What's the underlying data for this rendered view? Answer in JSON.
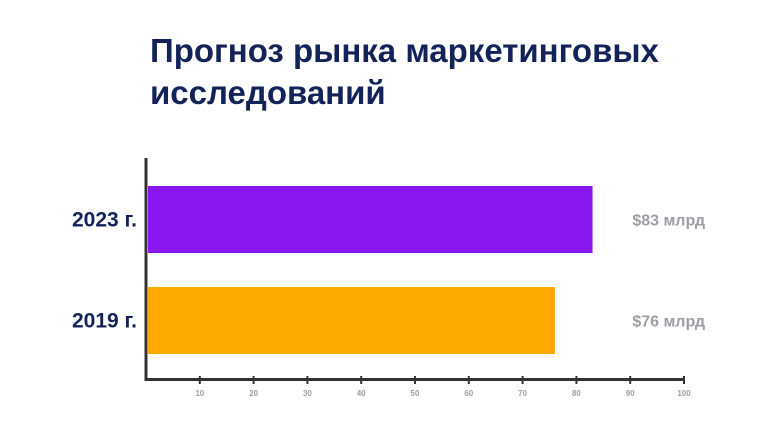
{
  "title_lines": [
    "Прогноз рынка маркетинговых",
    "исследований"
  ],
  "chart_data": {
    "type": "bar",
    "orientation": "horizontal",
    "categories": [
      "2023 г.",
      "2019 г."
    ],
    "values": [
      83,
      76
    ],
    "value_labels": [
      "$83 млрд",
      "$76 млрд"
    ],
    "colors": [
      "#8a17f0",
      "#ffa800"
    ],
    "xlim": [
      0,
      100
    ],
    "xticks": [
      10,
      20,
      30,
      40,
      50,
      60,
      70,
      80,
      90,
      100
    ],
    "grid": false,
    "legend": "none"
  }
}
